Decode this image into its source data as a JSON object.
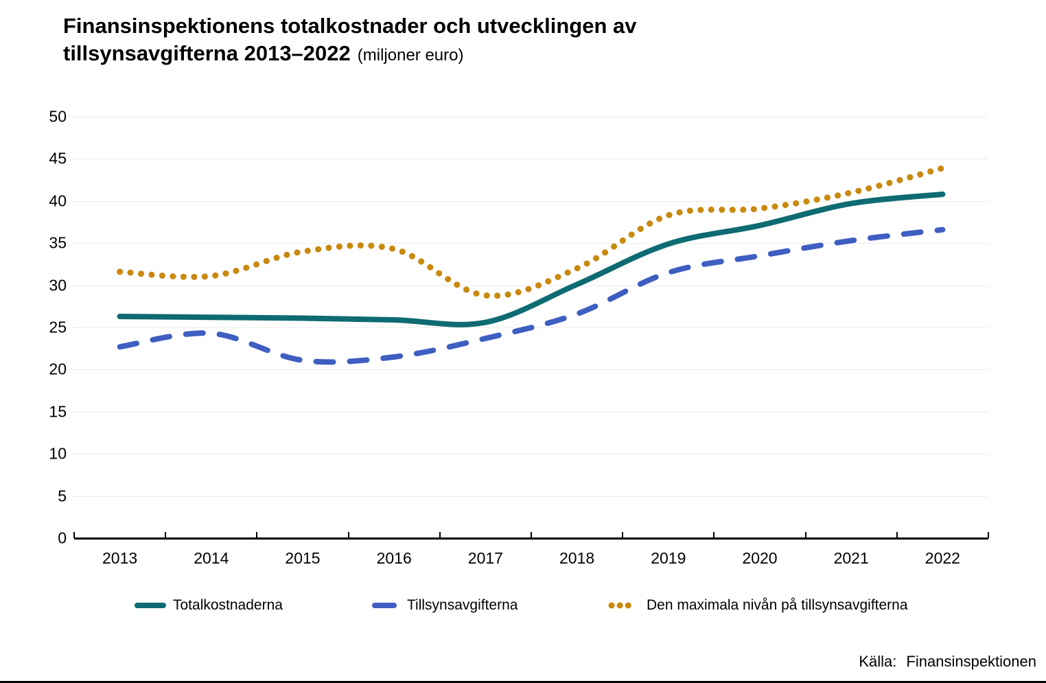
{
  "title": {
    "line1": "Finansinspektionens totalkostnader och utvecklingen av",
    "line2": "tillsynsavgifterna 2013–2022",
    "unit": "(miljoner euro)"
  },
  "source": {
    "label": "Källa:",
    "value": "Finansinspektionen"
  },
  "colors": {
    "grid": "#ececec",
    "axis": "#000000",
    "total_costs": "#0e6b72",
    "supervision_fees": "#3e5ec1",
    "max_level": "#c9890f"
  },
  "chart_data": {
    "type": "line",
    "title": "Finansinspektionens totalkostnader och utvecklingen av tillsynsavgifterna 2013–2022",
    "unit_label": "miljoner euro",
    "categories": [
      "2013",
      "2014",
      "2015",
      "2016",
      "2017",
      "2018",
      "2019",
      "2020",
      "2021",
      "2022"
    ],
    "series": [
      {
        "name": "Totalkostnaderna",
        "style": "solid",
        "color": "#0e6b72",
        "values": [
          26.3,
          26.2,
          26.1,
          25.9,
          25.6,
          30.1,
          34.9,
          37.1,
          39.7,
          40.8
        ]
      },
      {
        "name": "Tillsynsavgifterna",
        "style": "dashed",
        "color": "#3e5ec1",
        "values": [
          22.7,
          24.3,
          21.1,
          21.5,
          23.7,
          26.6,
          31.5,
          33.5,
          35.3,
          36.6
        ]
      },
      {
        "name": "Den maximala nivån på tillsynsavgifterna",
        "style": "dotted",
        "color": "#c9890f",
        "values": [
          31.6,
          31.1,
          34.0,
          34.3,
          28.8,
          32.0,
          38.3,
          39.1,
          41.0,
          43.9
        ]
      }
    ],
    "ylim": [
      0,
      50
    ],
    "ytick_step": 5,
    "grid": true,
    "legend_position": "bottom"
  }
}
